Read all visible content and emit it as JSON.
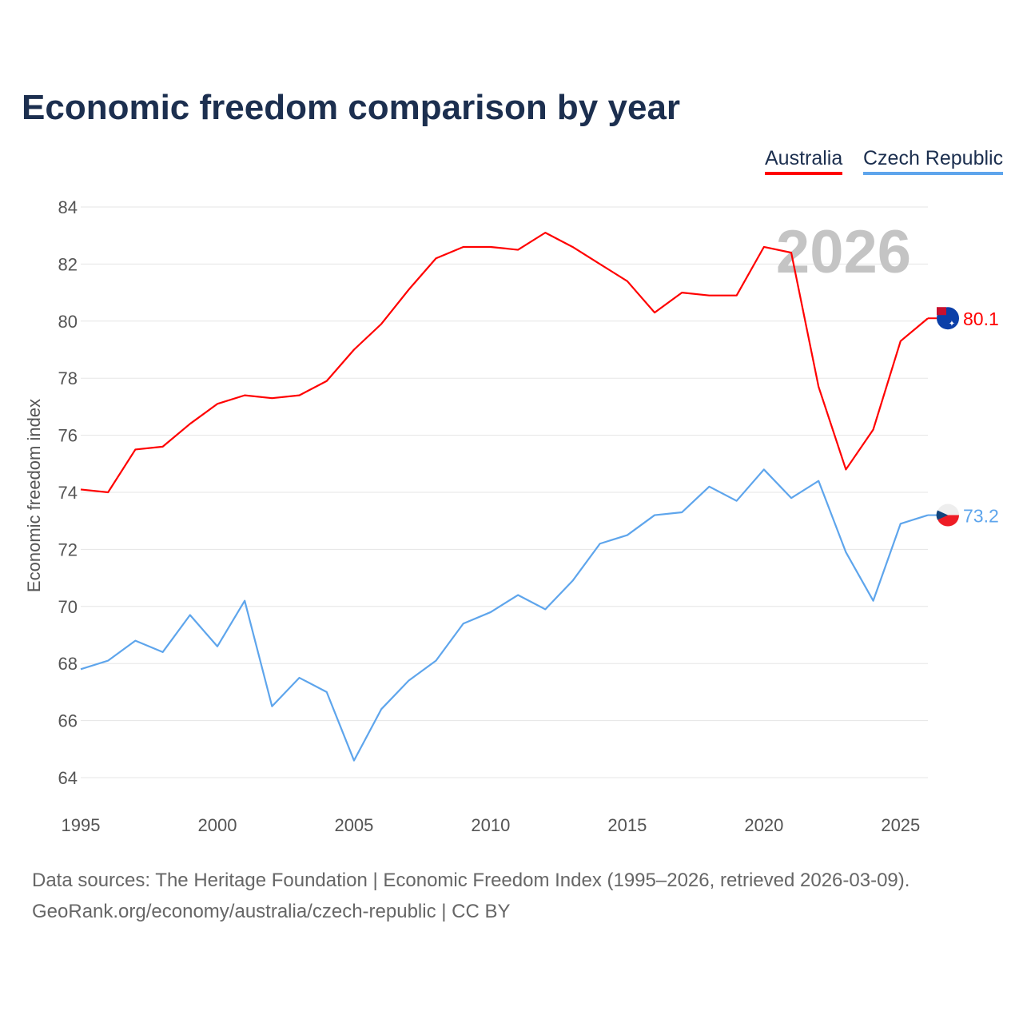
{
  "chart_data": {
    "type": "line",
    "title": "Economic freedom comparison by year",
    "xlabel": "",
    "ylabel": "Economic freedom index",
    "xlim": [
      1995,
      2026
    ],
    "ylim": [
      64,
      84
    ],
    "x_ticks": [
      "1995",
      "2000",
      "2005",
      "2010",
      "2015",
      "2020",
      "2025"
    ],
    "y_ticks": [
      "64",
      "66",
      "68",
      "70",
      "72",
      "74",
      "76",
      "78",
      "80",
      "82",
      "84"
    ],
    "grid": true,
    "legend_position": "top-right",
    "watermark_year": "2026",
    "x": [
      1995,
      1996,
      1997,
      1998,
      1999,
      2000,
      2001,
      2002,
      2003,
      2004,
      2005,
      2006,
      2007,
      2008,
      2009,
      2010,
      2011,
      2012,
      2013,
      2014,
      2015,
      2016,
      2017,
      2018,
      2019,
      2020,
      2021,
      2022,
      2023,
      2024,
      2025,
      2026
    ],
    "series": [
      {
        "name": "Australia",
        "color": "#ff0000",
        "end_label": "80.1",
        "values": [
          74.1,
          74.0,
          75.5,
          75.6,
          76.4,
          77.1,
          77.4,
          77.3,
          77.4,
          77.9,
          79.0,
          79.9,
          81.1,
          82.2,
          82.6,
          82.6,
          82.5,
          83.1,
          82.6,
          82.0,
          81.4,
          80.3,
          81.0,
          80.9,
          80.9,
          82.6,
          82.4,
          77.7,
          74.8,
          76.2,
          79.3,
          80.1
        ]
      },
      {
        "name": "Czech Republic",
        "color": "#5ea5ec",
        "end_label": "73.2",
        "values": [
          67.8,
          68.1,
          68.8,
          68.4,
          69.7,
          68.6,
          70.2,
          66.5,
          67.5,
          67.0,
          64.6,
          66.4,
          67.4,
          68.1,
          69.4,
          69.8,
          70.4,
          69.9,
          70.9,
          72.2,
          72.5,
          73.2,
          73.3,
          74.2,
          73.7,
          74.8,
          73.8,
          74.4,
          71.9,
          70.2,
          72.9,
          73.2
        ]
      }
    ]
  },
  "footer": {
    "line1": "Data sources: The Heritage Foundation | Economic Freedom Index (1995–2026, retrieved 2026-03-09).",
    "line2": "GeoRank.org/economy/australia/czech-republic | CC BY"
  }
}
